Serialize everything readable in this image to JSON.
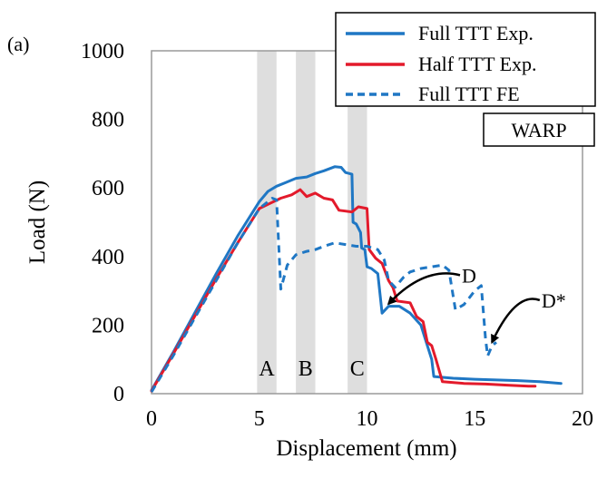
{
  "chart_data": {
    "type": "line",
    "panel_label": "(a)",
    "xlabel": "Displacement (mm)",
    "ylabel": "Load (N)",
    "xlim": [
      0,
      20
    ],
    "ylim": [
      0,
      1000
    ],
    "xticks": [
      0,
      5,
      10,
      15,
      20
    ],
    "yticks": [
      0,
      200,
      400,
      600,
      800,
      1000
    ],
    "grid": false,
    "legend_position": "top-right",
    "tag": "WARP",
    "bands": [
      {
        "label": "A",
        "x0": 4.9,
        "x1": 5.8
      },
      {
        "label": "B",
        "x0": 6.7,
        "x1": 7.6
      },
      {
        "label": "C",
        "x0": 9.1,
        "x1": 10.0
      }
    ],
    "series": [
      {
        "name": "Full TTT Exp.",
        "color": "#1f77c4",
        "style": "solid",
        "points": [
          [
            0,
            10
          ],
          [
            1,
            120
          ],
          [
            2,
            235
          ],
          [
            3,
            350
          ],
          [
            4,
            460
          ],
          [
            5,
            560
          ],
          [
            5.4,
            590
          ],
          [
            5.8,
            605
          ],
          [
            6.2,
            615
          ],
          [
            6.7,
            628
          ],
          [
            7.2,
            632
          ],
          [
            7.6,
            642
          ],
          [
            8.0,
            650
          ],
          [
            8.5,
            662
          ],
          [
            8.8,
            660
          ],
          [
            9.0,
            645
          ],
          [
            9.3,
            640
          ],
          [
            9.35,
            500
          ],
          [
            9.5,
            495
          ],
          [
            9.7,
            470
          ],
          [
            9.75,
            425
          ],
          [
            9.9,
            420
          ],
          [
            10.0,
            370
          ],
          [
            10.2,
            365
          ],
          [
            10.5,
            350
          ],
          [
            10.7,
            235
          ],
          [
            11.0,
            255
          ],
          [
            11.5,
            255
          ],
          [
            12.0,
            235
          ],
          [
            12.5,
            200
          ],
          [
            12.8,
            140
          ],
          [
            13.0,
            100
          ],
          [
            13.1,
            50
          ],
          [
            14.0,
            45
          ],
          [
            15.0,
            42
          ],
          [
            16.0,
            40
          ],
          [
            17.0,
            38
          ],
          [
            18.0,
            35
          ],
          [
            19.0,
            30
          ]
        ]
      },
      {
        "name": "Half TTT Exp.",
        "color": "#e31a2b",
        "style": "solid",
        "points": [
          [
            0,
            8
          ],
          [
            1,
            115
          ],
          [
            2,
            225
          ],
          [
            3,
            335
          ],
          [
            4,
            440
          ],
          [
            5,
            540
          ],
          [
            5.5,
            555
          ],
          [
            6.0,
            570
          ],
          [
            6.5,
            580
          ],
          [
            6.9,
            595
          ],
          [
            7.2,
            575
          ],
          [
            7.6,
            585
          ],
          [
            8.0,
            570
          ],
          [
            8.4,
            565
          ],
          [
            8.7,
            535
          ],
          [
            9.3,
            530
          ],
          [
            9.6,
            545
          ],
          [
            10.0,
            540
          ],
          [
            10.1,
            420
          ],
          [
            10.4,
            395
          ],
          [
            10.7,
            380
          ],
          [
            11.0,
            330
          ],
          [
            11.2,
            310
          ],
          [
            11.4,
            270
          ],
          [
            12.0,
            265
          ],
          [
            12.3,
            225
          ],
          [
            12.6,
            210
          ],
          [
            12.8,
            150
          ],
          [
            13.0,
            140
          ],
          [
            13.2,
            100
          ],
          [
            13.5,
            35
          ],
          [
            14.5,
            30
          ],
          [
            15.5,
            28
          ],
          [
            16.5,
            25
          ],
          [
            17.5,
            22
          ],
          [
            17.8,
            22
          ]
        ]
      },
      {
        "name": "Full TTT FE",
        "color": "#1f77c4",
        "style": "dashed",
        "points": [
          [
            0,
            5
          ],
          [
            1,
            110
          ],
          [
            2,
            220
          ],
          [
            3,
            330
          ],
          [
            4,
            440
          ],
          [
            5,
            540
          ],
          [
            5.6,
            570
          ],
          [
            5.8,
            565
          ],
          [
            6.0,
            305
          ],
          [
            6.3,
            375
          ],
          [
            6.7,
            405
          ],
          [
            7.2,
            415
          ],
          [
            7.6,
            420
          ],
          [
            8.0,
            430
          ],
          [
            8.5,
            440
          ],
          [
            9.0,
            435
          ],
          [
            9.5,
            430
          ],
          [
            10.0,
            430
          ],
          [
            10.5,
            420
          ],
          [
            10.8,
            390
          ],
          [
            11.0,
            330
          ],
          [
            11.3,
            310
          ],
          [
            11.7,
            340
          ],
          [
            12.0,
            355
          ],
          [
            12.5,
            365
          ],
          [
            13.0,
            370
          ],
          [
            13.5,
            375
          ],
          [
            13.8,
            360
          ],
          [
            14.1,
            245
          ],
          [
            14.5,
            260
          ],
          [
            15.0,
            300
          ],
          [
            15.3,
            315
          ],
          [
            15.5,
            160
          ],
          [
            15.6,
            110
          ],
          [
            15.8,
            140
          ],
          [
            16.0,
            150
          ]
        ]
      }
    ],
    "annotations": [
      {
        "label": "D",
        "text_x": 14.4,
        "text_y": 335,
        "arrow_x": 11.0,
        "arrow_y": 262
      },
      {
        "label": "D*",
        "text_x": 18.1,
        "text_y": 262,
        "arrow_x": 15.8,
        "arrow_y": 150
      }
    ]
  }
}
